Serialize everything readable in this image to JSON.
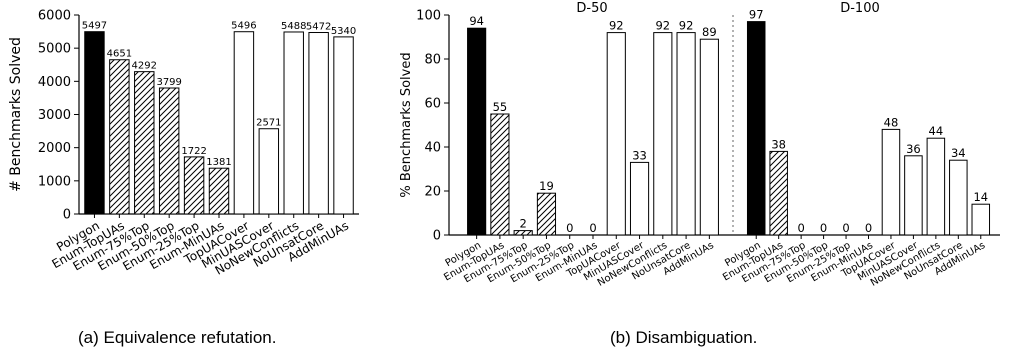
{
  "chart_data": [
    {
      "type": "bar",
      "ylabel": "# Benchmarks Solved",
      "ylim": [
        0,
        6000
      ],
      "yticks": [
        0,
        1000,
        2000,
        3000,
        4000,
        5000,
        6000
      ],
      "categories": [
        "Polygon",
        "Enum-TopUAs",
        "Enum-75%Top",
        "Enum-50%Top",
        "Enum-25%Top",
        "Enum-MinUAs",
        "TopUACover",
        "MinUASCover",
        "NoNewConflicts",
        "NoUnsatCore",
        "AddMinUAs"
      ],
      "values": [
        5497,
        4651,
        4292,
        3799,
        1722,
        1381,
        5496,
        2571,
        5488,
        5472,
        5340
      ],
      "styles": [
        "solid",
        "hatch",
        "hatch",
        "hatch",
        "hatch",
        "hatch",
        "empty",
        "empty",
        "empty",
        "empty",
        "empty"
      ],
      "grid": false
    },
    {
      "type": "bar",
      "ylabel": "% Benchmarks Solved",
      "ylim": [
        0,
        100
      ],
      "yticks": [
        0,
        20,
        40,
        60,
        80,
        100
      ],
      "grid": false,
      "groups": [
        {
          "title": "D-50",
          "categories": [
            "Polygon",
            "Enum-TopUAs",
            "Enum-75%Top",
            "Enum-50%Top",
            "Enum-25%Top",
            "Enum-MinUAs",
            "TopUACover",
            "MinUASCover",
            "NoNewConflicts",
            "NoUnsatCore",
            "AddMinUAs"
          ],
          "values": [
            94,
            55,
            2,
            19,
            0,
            0,
            92,
            33,
            92,
            92,
            89
          ]
        },
        {
          "title": "D-100",
          "categories": [
            "Polygon",
            "Enum-TopUAs",
            "Enum-75%Top",
            "Enum-50%Top",
            "Enum-25%Top",
            "Enum-MinUAs",
            "TopUACover",
            "MinUASCover",
            "NoNewConflicts",
            "NoUnsatCore",
            "AddMinUAs"
          ],
          "values": [
            97,
            38,
            0,
            0,
            0,
            0,
            48,
            36,
            44,
            34,
            14
          ]
        }
      ],
      "styles": [
        "solid",
        "hatch",
        "hatch",
        "hatch",
        "hatch",
        "hatch",
        "empty",
        "empty",
        "empty",
        "empty",
        "empty"
      ]
    }
  ],
  "captions": {
    "a": "(a) Equivalence refutation.",
    "b": "(b) Disambiguation."
  },
  "colors": {
    "solid": "#000000",
    "hatch_fill": "#ffffff",
    "hatch_line": "#000000",
    "empty": "#ffffff"
  }
}
